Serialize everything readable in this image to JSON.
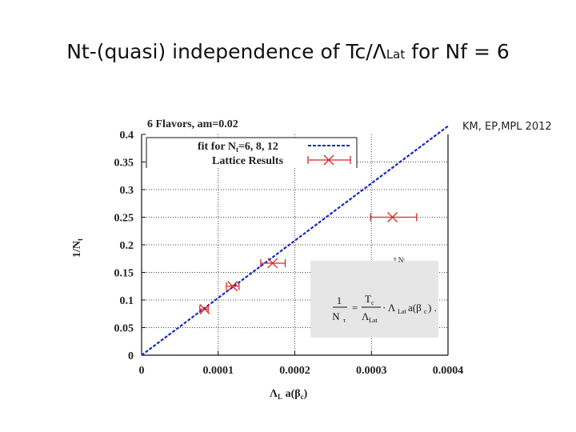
{
  "slide": {
    "title_main": "Nt-(quasi) independence of Tc/",
    "title_lambda": "Λ",
    "title_lat": "Lat",
    "title_tail": " for Nf = 6",
    "citation": "KM, EP,MPL 2012"
  },
  "formula": {
    "lhs_num": "1",
    "lhs_den": "N",
    "lhs_den_sub": "τ",
    "eq": "=",
    "rhs_num": "T",
    "rhs_num_sub": "c",
    "rhs_den": "Λ",
    "rhs_den_sub": "Lat",
    "tail": "· Λ",
    "tail_sub": "Lat",
    "tail_end": "a(β",
    "tail_end_sub": "c",
    "tail_close": ") .",
    "cut_text": "ᴮ Nᵗ"
  },
  "chart_data": {
    "type": "scatter",
    "title": "6 Flavors, am=0.02",
    "xlabel": "Λ",
    "xlabel_sub": "L",
    "xlabel_tail": " a(β",
    "xlabel_tail_sub": "c",
    "xlabel_close": ")",
    "ylabel": "1/N",
    "ylabel_sub": "t",
    "xlim": [
      0,
      0.0004
    ],
    "ylim": [
      0,
      0.4
    ],
    "x_ticks": [
      0,
      0.0001,
      0.0002,
      0.0003,
      0.0004
    ],
    "x_tick_labels": [
      "0",
      "0.0001",
      "0.0002",
      "0.0003",
      "0.0004"
    ],
    "y_ticks": [
      0,
      0.05,
      0.1,
      0.15,
      0.2,
      0.25,
      0.3,
      0.35,
      0.4
    ],
    "y_tick_labels": [
      "0",
      "0.05",
      "0.1",
      "0.15",
      "0.2",
      "0.25",
      "0.3",
      "0.35",
      "0.4"
    ],
    "grid": true,
    "legend": [
      {
        "label": "fit for N",
        "sub": "t",
        "tail": "=6, 8, 12",
        "style": "dashed",
        "color": "#1428c8"
      },
      {
        "label": "Lattice Results",
        "style": "cross-errorbar",
        "color": "#d42a2a"
      }
    ],
    "series": [
      {
        "name": "fit for Nt=6, 8, 12",
        "type": "line",
        "color": "#1428c8",
        "x": [
          0,
          0.0004
        ],
        "y": [
          0,
          0.415
        ]
      },
      {
        "name": "Lattice Results",
        "type": "scatter",
        "color": "#d42a2a",
        "points": [
          {
            "x": 8.25e-05,
            "y": 0.0833,
            "xerr_lo": 6.5e-06,
            "xerr_hi": 4.5e-06
          },
          {
            "x": 0.0001187,
            "y": 0.125,
            "xerr_lo": 8e-06,
            "xerr_hi": 8.5e-06
          },
          {
            "x": 0.000171,
            "y": 0.1667,
            "xerr_lo": 1.55e-05,
            "xerr_hi": 1.65e-05
          },
          {
            "x": 0.0003275,
            "y": 0.25,
            "xerr_lo": 2.85e-05,
            "xerr_hi": 3.15e-05
          }
        ]
      }
    ]
  }
}
